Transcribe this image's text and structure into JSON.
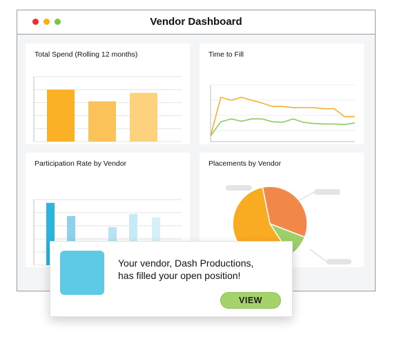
{
  "window": {
    "title": "Vendor Dashboard",
    "traffic_lights": [
      "#e8322c",
      "#f5b400",
      "#79c44a"
    ]
  },
  "panels": {
    "spend": {
      "title": "Total Spend (Rolling 12 months)"
    },
    "fill": {
      "title": "Time to Fill"
    },
    "participation": {
      "title": "Participation Rate by Vendor"
    },
    "placements": {
      "title": "Placements by Vendor"
    }
  },
  "notification": {
    "message": "Your vendor, Dash Productions,\nhas filled your open  position!",
    "button_label": "VIEW"
  },
  "chart_data": [
    {
      "type": "bar",
      "values": [
        80,
        62,
        75
      ],
      "colors": [
        "#fbb126",
        "#fcc25a",
        "#fdd27f"
      ],
      "ylim": [
        0,
        100
      ]
    },
    {
      "type": "line",
      "ylim": [
        0,
        100
      ],
      "series": [
        {
          "color": "#f5b12e",
          "values": [
            10,
            78,
            73,
            78,
            73,
            68,
            62,
            62,
            60,
            60,
            60,
            58,
            58,
            44,
            44
          ]
        },
        {
          "color": "#8ccc5e",
          "values": [
            10,
            35,
            40,
            36,
            40,
            40,
            35,
            34,
            40,
            34,
            32,
            31,
            31,
            30,
            33
          ]
        }
      ]
    },
    {
      "type": "bar",
      "values": [
        95,
        75,
        22,
        58,
        78,
        73
      ],
      "colors": [
        "#2db4dc",
        "#8fd1ea",
        "#7fcdea",
        "#b8e3f2",
        "#c6eaf6",
        "#d7f0f8"
      ],
      "ylim": [
        0,
        100
      ]
    },
    {
      "type": "pie",
      "values": [
        34,
        10,
        56
      ],
      "colors": [
        "#f2874a",
        "#9ed06a",
        "#f9ab21"
      ]
    }
  ]
}
